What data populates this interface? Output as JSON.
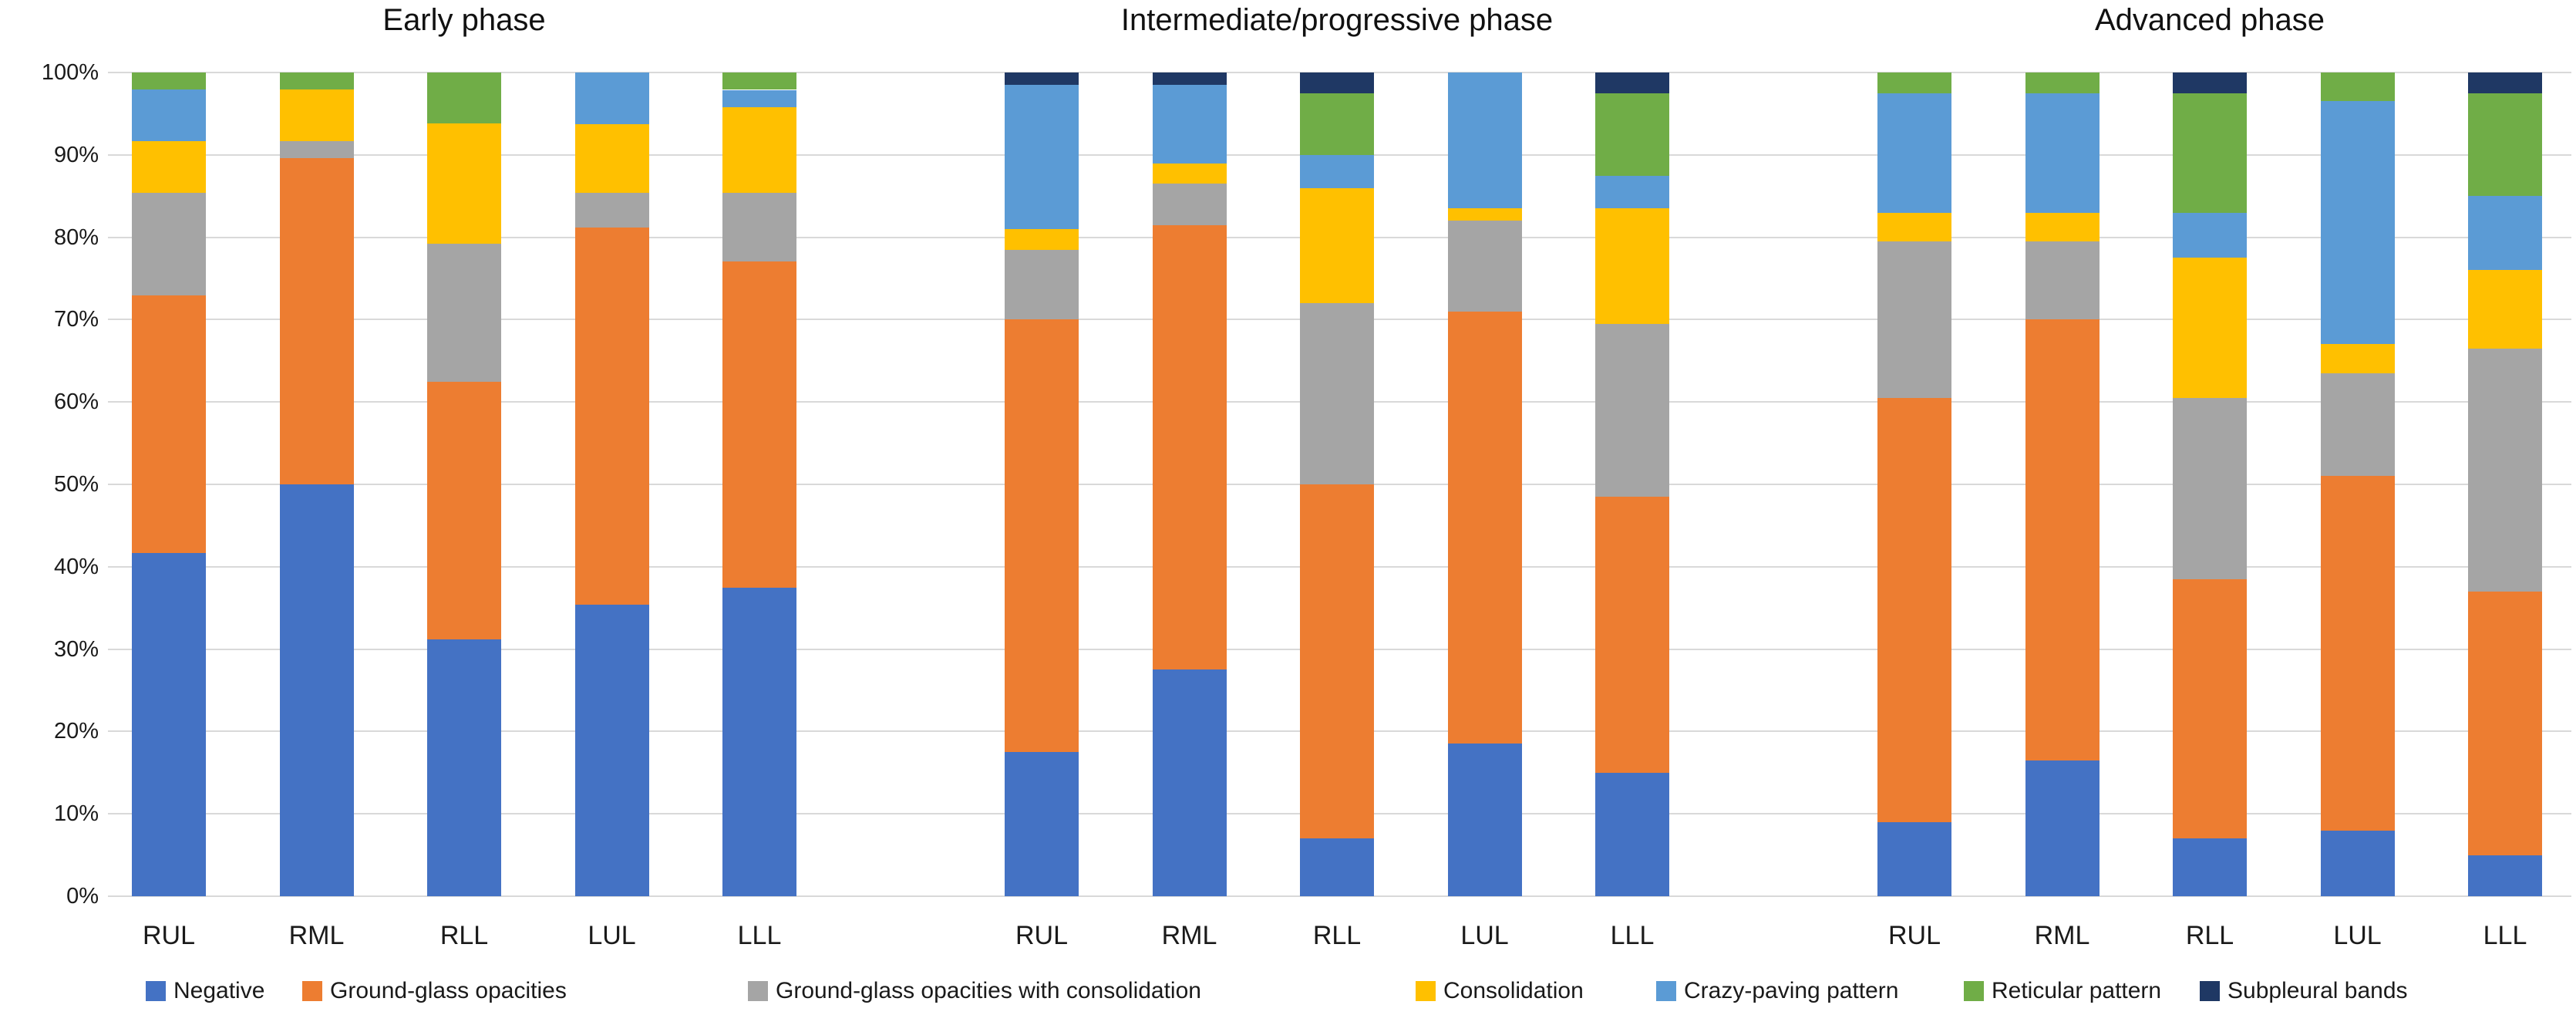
{
  "figure": {
    "background": "#ffffff",
    "gridline_color": "#d9d9d9"
  },
  "chart_data": {
    "type": "bar",
    "stacked": true,
    "unit": "%",
    "ylim": [
      0,
      100
    ],
    "grid": true,
    "legend_position": "bottom",
    "y_ticks": [
      "100%",
      "90%",
      "80%",
      "70%",
      "60%",
      "50%",
      "40%",
      "30%",
      "20%",
      "10%",
      "0%"
    ],
    "legend": [
      {
        "label": "Negative",
        "color": "#4472C4"
      },
      {
        "label": "Ground-glass opacities",
        "color": "#ED7D31"
      },
      {
        "label": "Ground-glass opacities with consolidation",
        "color": "#A5A5A5"
      },
      {
        "label": "Consolidation",
        "color": "#FFC000"
      },
      {
        "label": "Crazy-paving pattern",
        "color": "#5B9BD5"
      },
      {
        "label": "Reticular pattern",
        "color": "#70AD47"
      },
      {
        "label": "Subpleural bands",
        "color": "#1F3864"
      }
    ],
    "groups": [
      {
        "label": "Early phase",
        "bars": [
          {
            "category": "RUL",
            "values": [
              41.7,
              31.2,
              12.5,
              6.3,
              6.2,
              2.1,
              0
            ]
          },
          {
            "category": "RML",
            "values": [
              50.0,
              39.6,
              2.1,
              6.2,
              0,
              2.1,
              0
            ]
          },
          {
            "category": "RLL",
            "values": [
              31.2,
              31.3,
              16.7,
              14.6,
              0,
              6.2,
              0
            ]
          },
          {
            "category": "LUL",
            "values": [
              35.4,
              45.8,
              4.2,
              8.3,
              6.3,
              0,
              0
            ]
          },
          {
            "category": "LLL",
            "values": [
              37.5,
              39.6,
              8.3,
              10.4,
              2.1,
              2.1,
              0
            ]
          }
        ]
      },
      {
        "label": "Intermediate/progressive phase",
        "bars": [
          {
            "category": "RUL",
            "values": [
              17.5,
              52.5,
              8.5,
              2.5,
              17.5,
              0,
              1.5
            ]
          },
          {
            "category": "RML",
            "values": [
              27.5,
              54.0,
              5.0,
              2.5,
              9.5,
              0,
              1.5
            ]
          },
          {
            "category": "RLL",
            "values": [
              7.0,
              43.0,
              22.0,
              14.0,
              4.0,
              7.5,
              2.5
            ]
          },
          {
            "category": "LUL",
            "values": [
              18.5,
              52.5,
              11.0,
              1.5,
              16.5,
              0,
              0
            ]
          },
          {
            "category": "LLL",
            "values": [
              15.0,
              33.5,
              21.0,
              14.0,
              4.0,
              10.0,
              2.5
            ]
          }
        ]
      },
      {
        "label": "Advanced phase",
        "bars": [
          {
            "category": "RUL",
            "values": [
              9.0,
              51.5,
              19.0,
              3.5,
              14.5,
              2.5,
              0
            ]
          },
          {
            "category": "RML",
            "values": [
              16.5,
              53.5,
              9.5,
              3.5,
              14.5,
              2.5,
              0
            ]
          },
          {
            "category": "RLL",
            "values": [
              7.0,
              31.5,
              22.0,
              17.0,
              5.5,
              14.5,
              2.5
            ]
          },
          {
            "category": "LUL",
            "values": [
              8.0,
              43.0,
              12.5,
              3.5,
              29.5,
              3.5,
              0
            ]
          },
          {
            "category": "LLL",
            "values": [
              5.0,
              32.0,
              29.5,
              9.5,
              9.0,
              12.5,
              2.5
            ]
          }
        ]
      }
    ]
  }
}
